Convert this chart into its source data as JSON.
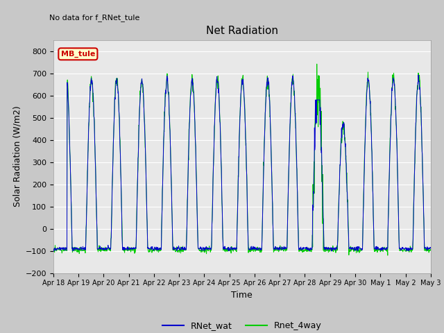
{
  "title": "Net Radiation",
  "subtitle": "No data for f_RNet_tule",
  "ylabel": "Solar Radiation (W/m2)",
  "xlabel": "Time",
  "ylim": [
    -200,
    850
  ],
  "yticks": [
    -200,
    -100,
    0,
    100,
    200,
    300,
    400,
    500,
    600,
    700,
    800
  ],
  "fig_bg": "#c8c8c8",
  "plot_bg": "#e8e8e8",
  "legend_label": "MB_tule",
  "legend_bg": "#ffffcc",
  "legend_border": "#cc0000",
  "series1_color": "#0000cc",
  "series2_color": "#00cc00",
  "series1_label": "RNet_wat",
  "series2_label": "Rnet_4way",
  "n_days": 15
}
